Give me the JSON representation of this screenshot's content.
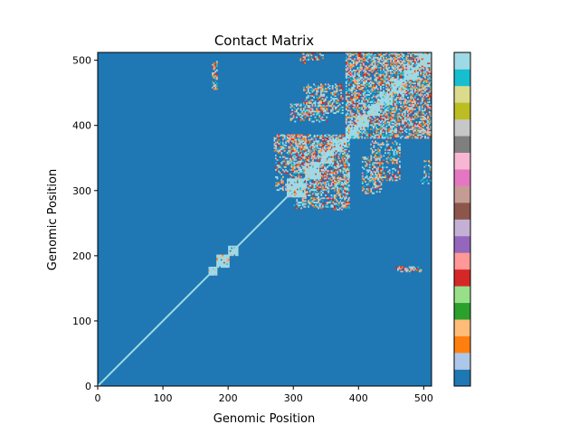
{
  "chart_data": {
    "type": "heatmap",
    "title": "Contact Matrix",
    "xlabel": "Genomic Position",
    "ylabel": "Genomic Position",
    "xlim": [
      0,
      512
    ],
    "ylim": [
      0,
      512
    ],
    "x_ticks": [
      0,
      100,
      200,
      300,
      400,
      500
    ],
    "y_ticks": [
      0,
      100,
      200,
      300,
      400,
      500
    ],
    "matrix_size": 512,
    "background_value": 0,
    "colormap": "tab20",
    "colorbar_colors": [
      "#1f77b4",
      "#aec7e8",
      "#ff7f0e",
      "#ffbb78",
      "#2ca02c",
      "#98df8a",
      "#d62728",
      "#ff9896",
      "#9467bd",
      "#c5b0d5",
      "#8c564b",
      "#c49c94",
      "#e377c2",
      "#f7b6d2",
      "#7f7f7f",
      "#c7c7c7",
      "#bcbd22",
      "#dbdb8d",
      "#17becf",
      "#9edae5"
    ],
    "diagonal": {
      "from": 0,
      "to": 512,
      "color": "#9edae5"
    },
    "domains": [
      {
        "start": 170,
        "end": 182
      },
      {
        "start": 182,
        "end": 200
      },
      {
        "start": 200,
        "end": 215
      },
      {
        "start": 290,
        "end": 318
      },
      {
        "start": 318,
        "end": 342
      },
      {
        "start": 342,
        "end": 360
      },
      {
        "start": 360,
        "end": 380
      },
      {
        "start": 380,
        "end": 398
      },
      {
        "start": 398,
        "end": 415
      },
      {
        "start": 415,
        "end": 432
      },
      {
        "start": 432,
        "end": 450
      },
      {
        "start": 450,
        "end": 470
      },
      {
        "start": 470,
        "end": 490
      },
      {
        "start": 490,
        "end": 512
      }
    ],
    "contact_blocks": [
      {
        "x": [
          175,
          182
        ],
        "y": [
          455,
          498
        ]
      },
      {
        "x": [
          300,
          385
        ],
        "y": [
          272,
          385
        ]
      },
      {
        "x": [
          380,
          512
        ],
        "y": [
          380,
          512
        ]
      },
      {
        "x": [
          315,
          375
        ],
        "y": [
          418,
          462
        ]
      },
      {
        "x": [
          320,
          345
        ],
        "y": [
          500,
          512
        ]
      },
      {
        "x": [
          455,
          490
        ],
        "y": [
          177,
          183
        ]
      },
      {
        "x": [
          405,
          435
        ],
        "y": [
          295,
          350
        ]
      },
      {
        "x": [
          495,
          512
        ],
        "y": [
          310,
          320
        ]
      },
      {
        "x": [
          360,
          385
        ],
        "y": [
          270,
          320
        ]
      }
    ]
  }
}
